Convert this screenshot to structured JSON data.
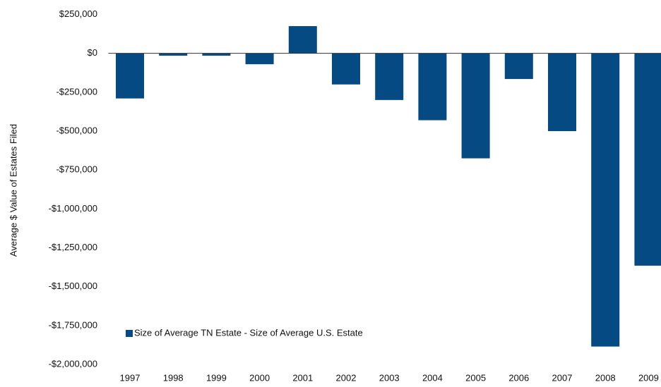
{
  "chart_data": {
    "type": "bar",
    "y_label": "Average $ Value of Estates Filed",
    "categories": [
      "1997",
      "1998",
      "1999",
      "2000",
      "2001",
      "2002",
      "2003",
      "2004",
      "2005",
      "2006",
      "2007",
      "2008",
      "2009"
    ],
    "series": [
      {
        "name": "Size of Average TN Estate - Size of Average U.S. Estate",
        "color": "#064a84",
        "values": [
          -290000,
          -15000,
          -15000,
          -70000,
          175000,
          -200000,
          -300000,
          -430000,
          -675000,
          -165000,
          -500000,
          -1885000,
          -1365000
        ]
      }
    ],
    "ylim": [
      -2000000,
      250000
    ],
    "yticks": [
      {
        "value": -2000000,
        "label": "-$2,000,000"
      },
      {
        "value": -1750000,
        "label": "-$1,750,000"
      },
      {
        "value": -1500000,
        "label": "-$1,500,000"
      },
      {
        "value": -1250000,
        "label": "-$1,250,000"
      },
      {
        "value": -1000000,
        "label": "-$1,000,000"
      },
      {
        "value": -750000,
        "label": "-$750,000"
      },
      {
        "value": -500000,
        "label": "-$500,000"
      },
      {
        "value": -250000,
        "label": "-$250,000"
      },
      {
        "value": 0,
        "label": "$0"
      },
      {
        "value": 250000,
        "label": "$250,000"
      }
    ],
    "grid": false,
    "legend": "lower-left"
  }
}
